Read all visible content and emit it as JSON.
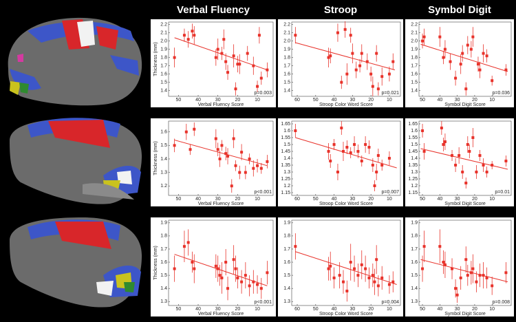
{
  "chart_data": [
    {
      "type": "scatter",
      "title": "Verbal Fluency",
      "xlabel": "Verbal Fluency Score",
      "ylabel": "Thickness (mm)",
      "annotation": "p=0.003",
      "color": "#e8322a",
      "x": [
        52,
        47,
        45,
        43,
        42,
        31,
        30,
        28,
        27,
        26,
        25,
        22,
        21,
        20,
        19,
        15,
        12,
        10,
        9,
        8,
        5
      ],
      "values": [
        1.8,
        2.07,
        2.02,
        2.12,
        2.07,
        1.8,
        1.9,
        1.85,
        2.02,
        1.75,
        1.62,
        1.82,
        1.42,
        1.72,
        1.72,
        1.85,
        1.7,
        1.45,
        2.07,
        1.55,
        1.65
      ],
      "errors": [
        0.12,
        0.08,
        0.1,
        0.09,
        0.11,
        0.1,
        0.13,
        0.08,
        0.12,
        0.1,
        0.09,
        0.14,
        0.08,
        0.1,
        0.12,
        0.09,
        0.11,
        0.07,
        0.1,
        0.08,
        0.09
      ],
      "trend": {
        "x": [
          52,
          5
        ],
        "y": [
          2.04,
          1.65
        ]
      },
      "xlim": [
        55,
        2
      ],
      "xticks": [
        50,
        40,
        30,
        20,
        10
      ],
      "ylim": [
        1.33,
        2.23
      ],
      "yticks": [
        1.4,
        1.5,
        1.6,
        1.7,
        1.8,
        1.9,
        {
          "value": 2,
          "label": "2.0"
        },
        2.1,
        2.2
      ]
    },
    {
      "type": "scatter",
      "title": "Stroop",
      "xlabel": "Stroop Color Word Score",
      "annotation": "p=0.021",
      "color": "#e8322a",
      "x": [
        61,
        43,
        42,
        38,
        36,
        34,
        33,
        31,
        30,
        28,
        26,
        25,
        22,
        20,
        19,
        17,
        16,
        14,
        10,
        8
      ],
      "values": [
        2.07,
        1.8,
        1.82,
        2.1,
        1.5,
        2.14,
        1.6,
        2.07,
        1.85,
        1.65,
        1.7,
        1.85,
        1.75,
        1.6,
        1.45,
        1.85,
        1.42,
        1.57,
        1.6,
        1.75
      ],
      "errors": [
        0.1,
        0.12,
        0.09,
        0.11,
        0.08,
        0.1,
        0.13,
        0.09,
        0.12,
        0.1,
        0.08,
        0.11,
        0.1,
        0.09,
        0.12,
        0.1,
        0.08,
        0.11,
        0.09,
        0.1
      ],
      "trend": {
        "x": [
          61,
          7
        ],
        "y": [
          1.98,
          1.65
        ]
      },
      "xlim": [
        63,
        4
      ],
      "xticks": [
        60,
        50,
        40,
        30,
        20,
        10
      ],
      "ylim": [
        1.33,
        2.23
      ],
      "yticks": [
        1.4,
        1.5,
        1.6,
        1.7,
        1.8,
        1.9,
        {
          "value": 2,
          "label": "2.0"
        },
        2.1,
        2.2
      ]
    },
    {
      "type": "scatter",
      "title": "Symbol Digit",
      "xlabel": "Symbol Digit Score",
      "annotation": "p=0.036",
      "color": "#e8322a",
      "x": [
        50,
        49,
        40,
        38,
        37,
        34,
        31,
        28,
        27,
        25,
        24,
        22,
        21,
        18,
        17,
        15,
        13,
        10,
        2
      ],
      "values": [
        2.0,
        2.05,
        2.05,
        1.8,
        1.9,
        1.75,
        1.55,
        1.72,
        1.85,
        1.42,
        1.95,
        1.9,
        2.05,
        1.72,
        1.65,
        1.85,
        1.82,
        1.52,
        1.65
      ],
      "errors": [
        0.09,
        0.1,
        0.12,
        0.08,
        0.11,
        0.1,
        0.09,
        0.12,
        0.1,
        0.08,
        0.11,
        0.1,
        0.12,
        0.09,
        0.1,
        0.11,
        0.08,
        0.06,
        0.07
      ],
      "trend": {
        "x": [
          51,
          1
        ],
        "y": [
          1.96,
          1.63
        ]
      },
      "xlim": [
        52,
        -1
      ],
      "xticks": [
        50,
        40,
        30,
        20,
        10
      ],
      "ylim": [
        1.33,
        2.23
      ],
      "yticks": [
        1.4,
        1.5,
        1.6,
        1.7,
        1.8,
        1.9,
        {
          "value": 2,
          "label": "2.0"
        },
        2.1,
        2.2
      ]
    },
    {
      "type": "scatter",
      "xlabel": "Verbal Fluency Score",
      "ylabel": "Thickness (mm)",
      "annotation": "p<0.001",
      "color": "#e8322a",
      "x": [
        52,
        46,
        44,
        42,
        31,
        30,
        29,
        28,
        26,
        25,
        23,
        22,
        21,
        19,
        18,
        16,
        14,
        12,
        10,
        8,
        5
      ],
      "values": [
        1.5,
        1.6,
        1.47,
        1.62,
        1.55,
        1.47,
        1.4,
        1.5,
        1.44,
        1.42,
        1.2,
        1.55,
        1.35,
        1.3,
        1.45,
        1.3,
        1.4,
        1.33,
        1.35,
        1.33,
        1.38
      ],
      "errors": [
        0.05,
        0.06,
        0.04,
        0.05,
        0.07,
        0.05,
        0.06,
        0.04,
        0.05,
        0.06,
        0.05,
        0.07,
        0.04,
        0.05,
        0.06,
        0.05,
        0.04,
        0.06,
        0.05,
        0.04,
        0.05
      ],
      "trend": {
        "x": [
          52,
          5
        ],
        "y": [
          1.54,
          1.35
        ]
      },
      "xlim": [
        55,
        2
      ],
      "xticks": [
        50,
        40,
        30,
        20,
        10
      ],
      "ylim": [
        1.13,
        1.68
      ],
      "yticks": [
        1.2,
        1.3,
        1.4,
        1.5,
        1.6
      ]
    },
    {
      "type": "scatter",
      "xlabel": "Stroop Color Word Score",
      "annotation": "p=0.007",
      "color": "#e8322a",
      "x": [
        61,
        43,
        42,
        40,
        38,
        36,
        35,
        33,
        31,
        29,
        27,
        25,
        23,
        21,
        19,
        18,
        17,
        16,
        14,
        10
      ],
      "values": [
        1.6,
        1.45,
        1.38,
        1.5,
        1.3,
        1.62,
        1.45,
        1.48,
        1.44,
        1.5,
        1.45,
        1.38,
        1.5,
        1.48,
        1.35,
        1.2,
        1.3,
        1.42,
        1.35,
        1.4
      ],
      "errors": [
        0.05,
        0.06,
        0.05,
        0.04,
        0.06,
        0.05,
        0.07,
        0.05,
        0.04,
        0.06,
        0.05,
        0.04,
        0.06,
        0.05,
        0.05,
        0.04,
        0.06,
        0.05,
        0.04,
        0.05
      ],
      "trend": {
        "x": [
          61,
          6
        ],
        "y": [
          1.55,
          1.33
        ]
      },
      "xlim": [
        63,
        4
      ],
      "xticks": [
        60,
        50,
        40,
        30,
        20,
        10
      ],
      "ylim": [
        1.13,
        1.67
      ],
      "yticks": [
        1.15,
        1.2,
        1.25,
        1.3,
        1.35,
        1.4,
        1.45,
        1.5,
        1.55,
        1.6,
        1.65
      ]
    },
    {
      "type": "scatter",
      "xlabel": "Symbol Digit Score",
      "annotation": "p=0.01",
      "color": "#e8322a",
      "x": [
        50,
        49,
        39,
        38,
        37,
        33,
        31,
        29,
        27,
        25,
        24,
        23,
        21,
        19,
        17,
        15,
        13,
        10,
        2
      ],
      "values": [
        1.6,
        1.45,
        1.62,
        1.5,
        1.52,
        1.42,
        1.35,
        1.42,
        1.3,
        1.22,
        1.5,
        1.45,
        1.55,
        1.3,
        1.42,
        1.35,
        1.3,
        1.35,
        1.38
      ],
      "errors": [
        0.05,
        0.06,
        0.05,
        0.05,
        0.06,
        0.04,
        0.05,
        0.06,
        0.05,
        0.04,
        0.06,
        0.05,
        0.07,
        0.05,
        0.04,
        0.05,
        0.04,
        0.03,
        0.04
      ],
      "trend": {
        "x": [
          51,
          1
        ],
        "y": [
          1.47,
          1.32
        ]
      },
      "xlim": [
        52,
        -1
      ],
      "xticks": [
        50,
        40,
        30,
        20,
        10
      ],
      "ylim": [
        1.13,
        1.67
      ],
      "yticks": [
        1.15,
        1.2,
        1.25,
        1.3,
        1.35,
        1.4,
        1.45,
        1.5,
        1.55,
        1.6,
        1.65
      ]
    },
    {
      "type": "scatter",
      "xlabel": "Verbal Fluency Score",
      "ylabel": "Thickness (mm)",
      "annotation": "p<0.001",
      "color": "#e8322a",
      "x": [
        52,
        47,
        45,
        43,
        42,
        31,
        30,
        29,
        28,
        26,
        25,
        22,
        21,
        20,
        18,
        16,
        14,
        12,
        10,
        8,
        5
      ],
      "values": [
        1.55,
        1.72,
        1.75,
        1.6,
        1.55,
        1.57,
        1.55,
        1.5,
        1.48,
        1.6,
        1.4,
        1.62,
        1.55,
        1.48,
        1.45,
        1.5,
        1.42,
        1.45,
        1.43,
        1.4,
        1.52
      ],
      "errors": [
        0.1,
        0.12,
        0.1,
        0.08,
        0.11,
        0.09,
        0.1,
        0.08,
        0.12,
        0.1,
        0.09,
        0.11,
        0.1,
        0.08,
        0.09,
        0.1,
        0.08,
        0.09,
        0.07,
        0.08,
        0.09
      ],
      "trend": {
        "x": [
          52,
          5
        ],
        "y": [
          1.66,
          1.42
        ]
      },
      "xlim": [
        55,
        2
      ],
      "xticks": [
        50,
        40,
        30,
        20,
        10
      ],
      "ylim": [
        1.27,
        1.92
      ],
      "yticks": [
        1.3,
        1.4,
        1.5,
        1.6,
        1.7,
        1.8,
        1.9
      ]
    },
    {
      "type": "scatter",
      "xlabel": "Stroop Color Word Score",
      "annotation": "p=0.004",
      "color": "#e8322a",
      "x": [
        61,
        43,
        42,
        40,
        37,
        35,
        33,
        31,
        29,
        27,
        25,
        23,
        21,
        19,
        18,
        17,
        16,
        14,
        10,
        8
      ],
      "values": [
        1.72,
        1.55,
        1.57,
        1.48,
        1.5,
        1.45,
        1.38,
        1.6,
        1.55,
        1.5,
        1.58,
        1.55,
        1.48,
        1.5,
        1.45,
        1.62,
        1.42,
        1.48,
        1.43,
        1.45
      ],
      "errors": [
        0.1,
        0.09,
        0.11,
        0.08,
        0.1,
        0.09,
        0.08,
        0.14,
        0.1,
        0.09,
        0.11,
        0.1,
        0.08,
        0.09,
        0.1,
        0.11,
        0.08,
        0.09,
        0.07,
        0.08
      ],
      "trend": {
        "x": [
          61,
          6
        ],
        "y": [
          1.68,
          1.43
        ]
      },
      "xlim": [
        63,
        4
      ],
      "xticks": [
        60,
        50,
        40,
        30,
        20,
        10
      ],
      "ylim": [
        1.27,
        1.92
      ],
      "yticks": [
        1.3,
        1.4,
        1.5,
        1.6,
        1.7,
        1.8,
        1.9
      ]
    },
    {
      "type": "scatter",
      "xlabel": "Symbol Digit Score",
      "annotation": "p=0.008",
      "color": "#e8322a",
      "x": [
        50,
        49,
        40,
        38,
        37,
        33,
        31,
        30,
        28,
        25,
        24,
        22,
        21,
        19,
        17,
        15,
        13,
        10,
        2
      ],
      "values": [
        1.55,
        1.72,
        1.72,
        1.6,
        1.58,
        1.55,
        1.4,
        1.35,
        1.48,
        1.62,
        1.5,
        1.52,
        1.55,
        1.45,
        1.5,
        1.5,
        1.48,
        1.42,
        1.52
      ],
      "errors": [
        0.1,
        0.12,
        0.13,
        0.09,
        0.1,
        0.08,
        0.07,
        0.06,
        0.09,
        0.1,
        0.08,
        0.09,
        0.11,
        0.08,
        0.09,
        0.1,
        0.08,
        0.07,
        0.08
      ],
      "trend": {
        "x": [
          51,
          1
        ],
        "y": [
          1.62,
          1.45
        ]
      },
      "xlim": [
        52,
        -1
      ],
      "xticks": [
        50,
        40,
        30,
        20,
        10
      ],
      "ylim": [
        1.27,
        1.92
      ],
      "yticks": [
        1.3,
        1.4,
        1.5,
        1.6,
        1.7,
        1.8,
        1.9
      ]
    }
  ]
}
